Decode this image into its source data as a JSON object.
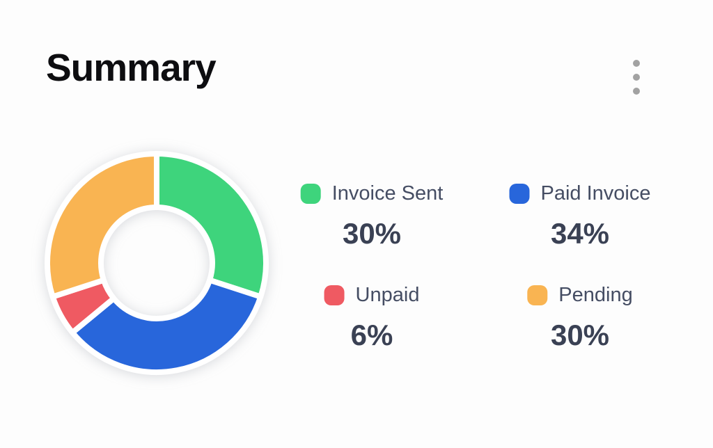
{
  "header": {
    "title": "Summary",
    "menu_icon": "kebab-vertical-icon"
  },
  "colors": {
    "background": "#FDFDFD",
    "title_text": "#0D0D10",
    "legend_label_text": "#454D63",
    "legend_value_text": "#3A4154",
    "menu_dots": "#A2A2A2",
    "donut_hole": "#FFFFFF",
    "segment_gap": "#FFFFFF"
  },
  "chart_data": {
    "type": "pie",
    "variant": "donut",
    "title": "Summary",
    "legend_position": "right",
    "legend_layout": "2x2-grid",
    "start_angle_deg": 0,
    "direction": "clockwise",
    "outer_radius": 157,
    "inner_radius": 80,
    "gap_stroke_px": 8,
    "segments": [
      {
        "id": "invoice-sent",
        "label": "Invoice Sent",
        "value": 30,
        "display": "30%",
        "color": "#3ED47C"
      },
      {
        "id": "paid-invoice",
        "label": "Paid Invoice",
        "value": 34,
        "display": "34%",
        "color": "#2866DB"
      },
      {
        "id": "unpaid",
        "label": "Unpaid",
        "value": 6,
        "display": "6%",
        "color": "#EF5A62"
      },
      {
        "id": "pending",
        "label": "Pending",
        "value": 30,
        "display": "30%",
        "color": "#F9B452"
      }
    ]
  }
}
